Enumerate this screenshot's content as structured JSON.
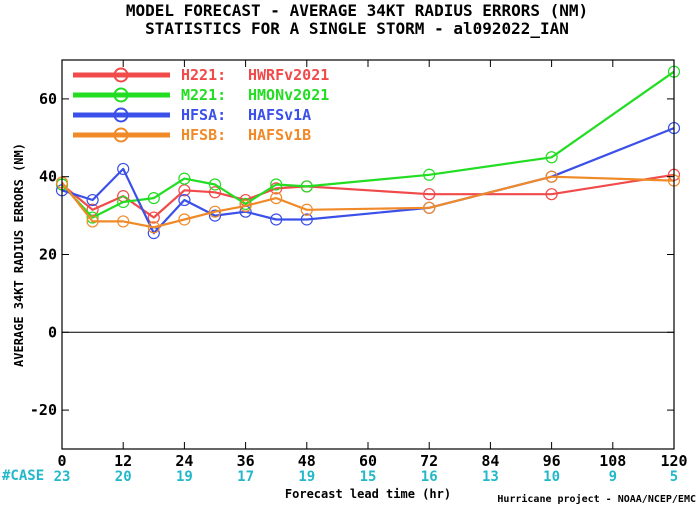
{
  "chart_data": {
    "type": "line",
    "title": "MODEL FORECAST - AVERAGE 34KT RADIUS ERRORS (NM)",
    "subtitle": "STATISTICS FOR A SINGLE STORM - al092022_IAN",
    "xlabel": "Forecast lead time (hr)",
    "ylabel": "AVERAGE 34KT RADIUS ERRORS (NM)",
    "xlim": [
      0,
      120
    ],
    "ylim": [
      -30,
      70
    ],
    "xticks": [
      0,
      12,
      24,
      36,
      48,
      60,
      72,
      84,
      96,
      108,
      120
    ],
    "yticks": [
      -20,
      0,
      20,
      40,
      60
    ],
    "zero_line": 0,
    "grid": false,
    "legend_position": "top-left",
    "case_label": "#CASE",
    "case_counts": [
      {
        "x": 0,
        "n": "23"
      },
      {
        "x": 12,
        "n": "20"
      },
      {
        "x": 24,
        "n": "19"
      },
      {
        "x": 36,
        "n": "17"
      },
      {
        "x": 48,
        "n": "19"
      },
      {
        "x": 60,
        "n": "15"
      },
      {
        "x": 72,
        "n": "16"
      },
      {
        "x": 84,
        "n": "13"
      },
      {
        "x": 96,
        "n": "10"
      },
      {
        "x": 108,
        "n": "9"
      },
      {
        "x": 120,
        "n": "5"
      }
    ],
    "credit": "Hurricane project - NOAA/NCEP/EMC",
    "series": [
      {
        "name": "H221:",
        "label": "HWRFv2021",
        "color": "#f04a4a",
        "x": [
          0,
          6,
          12,
          18,
          24,
          30,
          36,
          42,
          48,
          72,
          96,
          120
        ],
        "y": [
          38,
          31.5,
          35,
          29.5,
          36.5,
          36,
          34,
          37,
          37.5,
          35.5,
          35.5,
          40.5
        ]
      },
      {
        "name": "M221:",
        "label": "HMONv2021",
        "color": "#22dd22",
        "x": [
          0,
          6,
          12,
          18,
          24,
          30,
          36,
          42,
          48,
          72,
          96,
          120
        ],
        "y": [
          38,
          29.5,
          33.5,
          34.5,
          39.5,
          38,
          33,
          38,
          37.5,
          40.5,
          45,
          67
        ]
      },
      {
        "name": "HFSA:",
        "label": "HAFSv1A",
        "color": "#3a50e8",
        "x": [
          0,
          6,
          12,
          18,
          24,
          30,
          36,
          42,
          48,
          72,
          96,
          120
        ],
        "y": [
          36.5,
          34,
          42,
          25.5,
          34,
          30,
          31,
          29,
          29,
          32,
          40,
          52.5
        ]
      },
      {
        "name": "HFSB:",
        "label": "HAFSv1B",
        "color": "#f08a28",
        "x": [
          0,
          6,
          12,
          18,
          24,
          30,
          36,
          42,
          48,
          72,
          96,
          120
        ],
        "y": [
          38.5,
          28.5,
          28.5,
          27,
          29,
          31,
          32.5,
          34.5,
          31.5,
          32,
          40,
          39
        ]
      }
    ]
  }
}
